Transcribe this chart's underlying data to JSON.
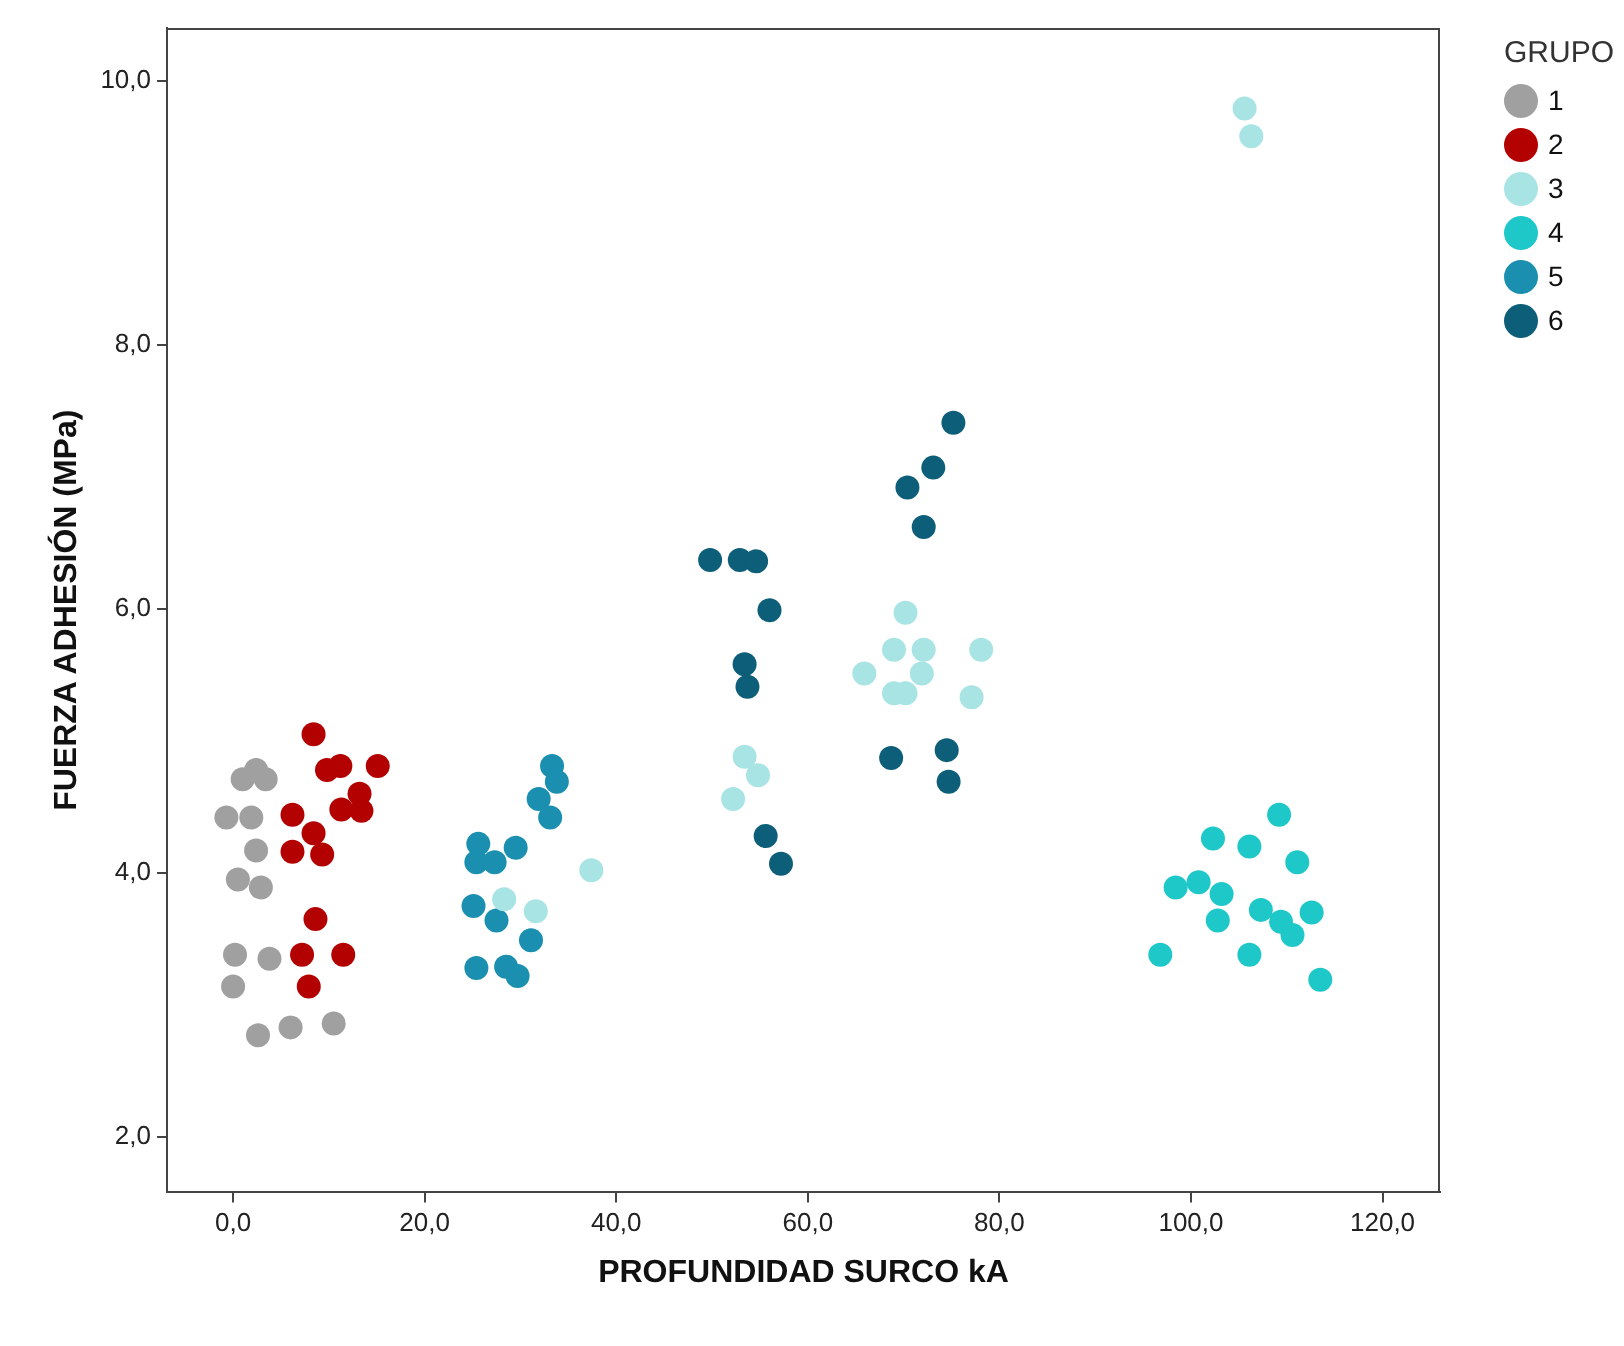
{
  "chart_data": {
    "type": "scatter",
    "xlabel": "PROFUNDIDAD SURCO kA",
    "ylabel": "FUERZA ADHESIÓN (MPa)",
    "legend_title": "GRUPO",
    "legend": "top right",
    "grid": false,
    "marker": "circle",
    "xlim": [
      -6.9,
      126
    ],
    "ylim": [
      1.58,
      10.4
    ],
    "xticks": [
      {
        "value": 0,
        "label": "0,0"
      },
      {
        "value": 20,
        "label": "20,0"
      },
      {
        "value": 40,
        "label": "40,0"
      },
      {
        "value": 60,
        "label": "60,0"
      },
      {
        "value": 80,
        "label": "80,0"
      },
      {
        "value": 100,
        "label": "100,0"
      },
      {
        "value": 120,
        "label": "120,0"
      }
    ],
    "yticks": [
      {
        "value": 2,
        "label": "2,0"
      },
      {
        "value": 4,
        "label": "4,0"
      },
      {
        "value": 6,
        "label": "6,0"
      },
      {
        "value": 8,
        "label": "8,0"
      },
      {
        "value": 10,
        "label": "10,0"
      }
    ],
    "series": [
      {
        "name": "1",
        "color": "#a0a0a0",
        "x": [
          1.0,
          2.4,
          3.4,
          -0.7,
          1.9,
          2.4,
          0.5,
          2.9,
          0.2,
          3.8,
          0.0,
          2.6,
          6.0,
          10.5
        ],
        "values": [
          4.71,
          4.78,
          4.71,
          4.42,
          4.42,
          4.17,
          3.95,
          3.89,
          3.38,
          3.35,
          3.14,
          2.77,
          2.83,
          2.86
        ]
      },
      {
        "name": "2",
        "color": "#b30000",
        "x": [
          8.4,
          9.8,
          11.2,
          15.1,
          13.2,
          11.3,
          13.4,
          6.2,
          8.4,
          6.2,
          9.3,
          8.6,
          7.2,
          11.5,
          7.9
        ],
        "values": [
          5.05,
          4.78,
          4.81,
          4.81,
          4.6,
          4.48,
          4.47,
          4.44,
          4.3,
          4.16,
          4.14,
          3.65,
          3.38,
          3.38,
          3.14
        ]
      },
      {
        "name": "3",
        "color": "#a8e4e4",
        "x": [
          37.4,
          28.3,
          31.6,
          53.4,
          54.8,
          52.2,
          70.2,
          69.0,
          72.1,
          78.1,
          65.9,
          71.9,
          69.0,
          70.2,
          77.1,
          105.6,
          106.3
        ],
        "values": [
          4.02,
          3.8,
          3.71,
          4.88,
          4.74,
          4.56,
          5.97,
          5.69,
          5.69,
          5.69,
          5.51,
          5.51,
          5.36,
          5.36,
          5.33,
          9.79,
          9.58
        ]
      },
      {
        "name": "4",
        "color": "#1ec8c8",
        "x": [
          109.2,
          102.3,
          106.1,
          111.1,
          98.4,
          100.8,
          103.2,
          107.3,
          102.8,
          109.4,
          112.6,
          110.6,
          96.8,
          106.1,
          113.5
        ],
        "values": [
          4.44,
          4.26,
          4.2,
          4.08,
          3.89,
          3.93,
          3.84,
          3.72,
          3.64,
          3.63,
          3.7,
          3.53,
          3.38,
          3.38,
          3.19
        ]
      },
      {
        "name": "5",
        "color": "#1a8fb0",
        "x": [
          33.3,
          33.8,
          31.9,
          33.1,
          25.6,
          29.5,
          25.4,
          27.3,
          25.1,
          27.5,
          31.1,
          25.4,
          28.5,
          29.7
        ],
        "values": [
          4.81,
          4.69,
          4.56,
          4.42,
          4.22,
          4.19,
          4.08,
          4.08,
          3.75,
          3.64,
          3.49,
          3.28,
          3.29,
          3.22
        ]
      },
      {
        "name": "6",
        "color": "#0d5e78",
        "x": [
          49.8,
          52.9,
          54.6,
          56.0,
          53.4,
          53.7,
          55.6,
          57.2,
          68.7,
          74.5,
          74.7,
          75.2,
          73.1,
          70.4,
          72.1
        ],
        "values": [
          6.37,
          6.37,
          6.36,
          5.99,
          5.58,
          5.41,
          4.28,
          4.07,
          4.87,
          4.93,
          4.69,
          7.41,
          7.07,
          6.92,
          6.62
        ]
      }
    ]
  }
}
